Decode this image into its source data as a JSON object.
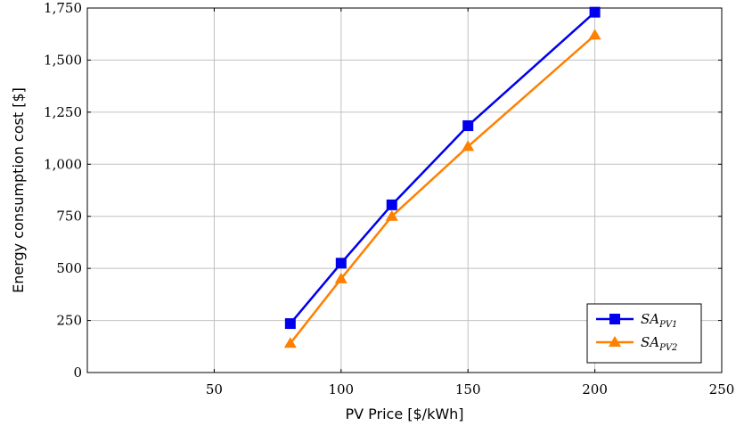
{
  "chart_data": {
    "type": "line",
    "xlabel": "PV Price [$/kWh]",
    "ylabel": "Energy consumption cost [$]",
    "xlim": [
      0,
      250
    ],
    "ylim": [
      0,
      1750
    ],
    "x_ticks": [
      50,
      100,
      150,
      200,
      250
    ],
    "x_tick_labels": [
      "50",
      "100",
      "150",
      "200",
      "250"
    ],
    "y_ticks": [
      0,
      250,
      500,
      750,
      1000,
      1250,
      1500,
      1750
    ],
    "y_tick_labels": [
      "0",
      "250",
      "500",
      "750",
      "1,000",
      "1,250",
      "1,500",
      "1,750"
    ],
    "grid": true,
    "legend_position": "bottom-right",
    "series": [
      {
        "name": "SA",
        "name_sub": "PV1",
        "color": "#0000ee",
        "marker": "square",
        "x": [
          80,
          100,
          120,
          150,
          200
        ],
        "y": [
          235,
          525,
          805,
          1185,
          1730
        ]
      },
      {
        "name": "SA",
        "name_sub": "PV2",
        "color": "#ff8000",
        "marker": "triangle",
        "x": [
          80,
          100,
          120,
          150,
          200
        ],
        "y": [
          140,
          450,
          750,
          1085,
          1620
        ]
      }
    ]
  }
}
